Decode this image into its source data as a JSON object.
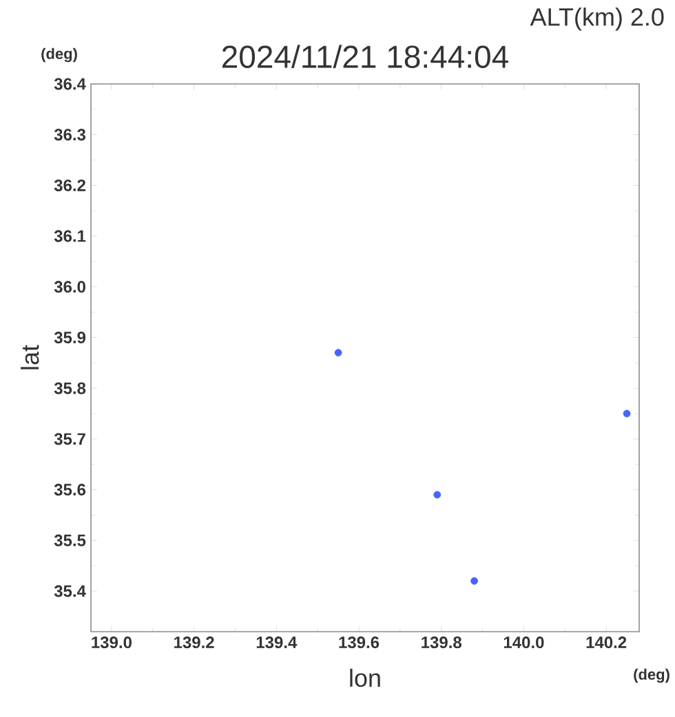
{
  "chart_data": {
    "type": "scatter",
    "title": "2024/11/21 18:44:04",
    "xlabel": "lon",
    "ylabel": "lat",
    "annotations": [
      "ALT(km)  2.0",
      "(deg)",
      "(deg)"
    ],
    "x": [
      139.55,
      139.79,
      139.88,
      140.25
    ],
    "values": [
      35.87,
      35.59,
      35.42,
      35.75
    ],
    "color": "#4466ff",
    "xlim": [
      138.95,
      140.28
    ],
    "ylim": [
      35.32,
      36.4
    ],
    "xticks": [
      {
        "value": 139.0,
        "label": "139.0"
      },
      139.2,
      139.4,
      139.6,
      139.8,
      {
        "value": 140.0,
        "label": "140.0"
      },
      140.2
    ],
    "yticks": [
      35.4,
      35.5,
      35.6,
      35.7,
      35.8,
      35.9,
      {
        "value": 36.0,
        "label": "36.0"
      },
      36.1,
      36.2,
      36.3,
      36.4
    ]
  }
}
